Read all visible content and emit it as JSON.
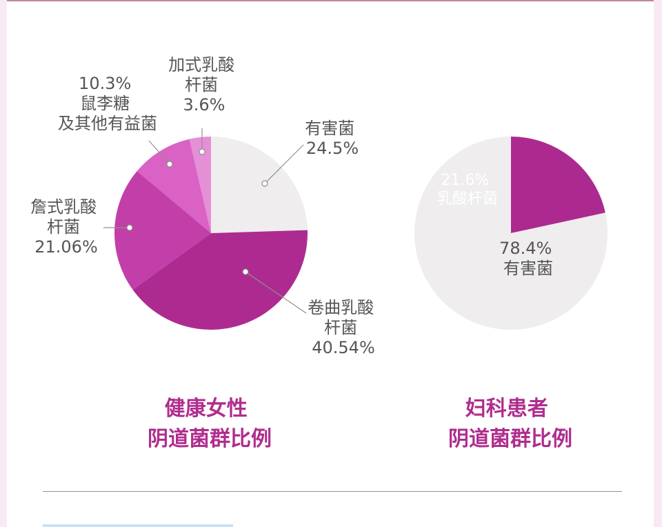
{
  "chart_data": [
    {
      "type": "pie",
      "caption": [
        "健康女性",
        "阴道菌群比例"
      ],
      "slices": [
        {
          "label": [
            "有害菌"
          ],
          "value": 24.5,
          "value_text": "24.5%",
          "color": "#efedee"
        },
        {
          "label": [
            "卷曲乳酸",
            "杆菌"
          ],
          "value": 40.54,
          "value_text": "40.54%",
          "color": "#ad2b91"
        },
        {
          "label": [
            "詹式乳酸",
            "杆菌"
          ],
          "value": 21.06,
          "value_text": "21.06%",
          "color": "#c23ea8"
        },
        {
          "label": [
            "鼠李糖",
            "及其他有益菌"
          ],
          "value": 10.3,
          "value_text": "10.3%",
          "color": "#d962c4"
        },
        {
          "label": [
            "加式乳酸",
            "杆菌"
          ],
          "value": 3.6,
          "value_text": "3.6%",
          "color": "#e58fd6"
        }
      ]
    },
    {
      "type": "pie",
      "caption": [
        "妇科患者",
        "阴道菌群比例"
      ],
      "slices": [
        {
          "label": [
            "乳酸杆菌"
          ],
          "value": 21.6,
          "value_text": "21.6%",
          "color": "#ac2a8f"
        },
        {
          "label": [
            "有害菌"
          ],
          "value": 78.4,
          "value_text": "78.4%",
          "color": "#efedee"
        }
      ]
    }
  ]
}
